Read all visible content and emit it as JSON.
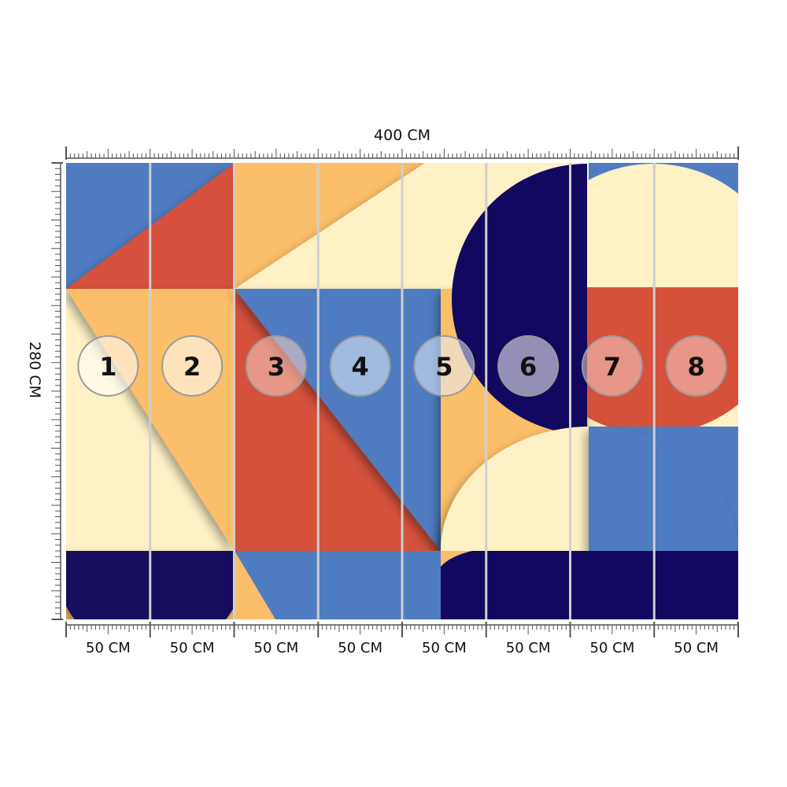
{
  "width_label": "400 CM",
  "height_label": "280 CM",
  "panels": [
    {
      "number": "1",
      "width_label": "50 CM"
    },
    {
      "number": "2",
      "width_label": "50 CM"
    },
    {
      "number": "3",
      "width_label": "50 CM"
    },
    {
      "number": "4",
      "width_label": "50 CM"
    },
    {
      "number": "5",
      "width_label": "50 CM"
    },
    {
      "number": "6",
      "width_label": "50 CM"
    },
    {
      "number": "7",
      "width_label": "50 CM"
    },
    {
      "number": "8",
      "width_label": "50 CM"
    }
  ],
  "colors": {
    "cream": "#FEF1C6",
    "orange": "#FBBE6A",
    "red": "#D5513C",
    "blue": "#4F7CC1",
    "navy": "#12085F",
    "seam": "#CFCFCF"
  }
}
